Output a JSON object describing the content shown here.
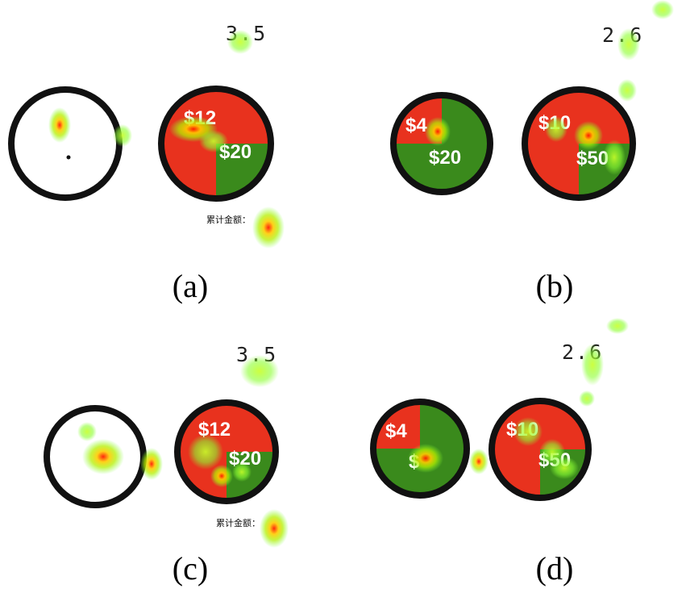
{
  "panels": {
    "a": {
      "label": "(a)",
      "number": "3.5",
      "wheel_top": "$12",
      "wheel_bottom": "$20",
      "caption": "累计金额："
    },
    "b": {
      "label": "(b)",
      "number": "2.6",
      "left_top": "$4",
      "left_bottom": "$20",
      "right_top": "$10",
      "right_bottom": "$50"
    },
    "c": {
      "label": "(c)",
      "number": "3.5",
      "wheel_top": "$12",
      "wheel_bottom": "$20",
      "caption": "累计金额："
    },
    "d": {
      "label": "(d)",
      "number": "2.6",
      "left_top": "$4",
      "left_bottom": "$",
      "right_top": "$10",
      "right_bottom": "$50"
    }
  },
  "colors": {
    "red": "#e8321e",
    "green": "#3a8a1c",
    "ring": "#111111"
  }
}
